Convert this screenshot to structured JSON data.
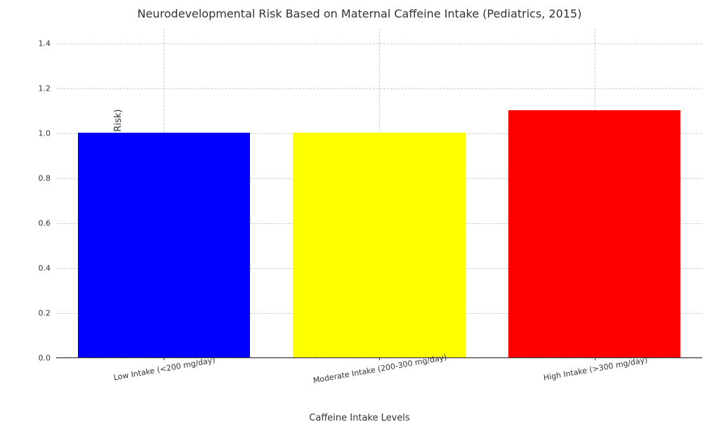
{
  "chart": {
    "type": "bar",
    "title": "Neurodevelopmental Risk Based on Maternal Caffeine Intake (Pediatrics, 2015)",
    "title_fontsize": 16,
    "title_color": "#333333",
    "xlabel": "Caffeine Intake Levels",
    "ylabel": "Relative Risk (1 = No Strong Evidence of Risk)",
    "label_fontsize": 13,
    "label_color": "#333333",
    "background_color": "#ffffff",
    "grid_color": "#cccccc",
    "grid_dash": true,
    "axis_color": "#333333",
    "tick_fontsize": 11,
    "xtick_rotation": 10,
    "ylim": [
      0.0,
      1.47
    ],
    "yticks": [
      0.0,
      0.2,
      0.4,
      0.6,
      0.8,
      1.0,
      1.2,
      1.4
    ],
    "ytick_labels": [
      "0.0",
      "0.2",
      "0.4",
      "0.6",
      "0.8",
      "1.0",
      "1.2",
      "1.4"
    ],
    "categories": [
      "Low Intake (<200 mg/day)",
      "Moderate Intake (200-300 mg/day)",
      "High Intake (>300 mg/day)"
    ],
    "values": [
      1.0,
      1.0,
      1.1
    ],
    "bar_colors": [
      "#0000ff",
      "#ffff00",
      "#ff0000"
    ],
    "bar_width": 0.8,
    "n_bars": 3,
    "spines": {
      "top": false,
      "right": false,
      "left": false,
      "bottom": true
    }
  }
}
